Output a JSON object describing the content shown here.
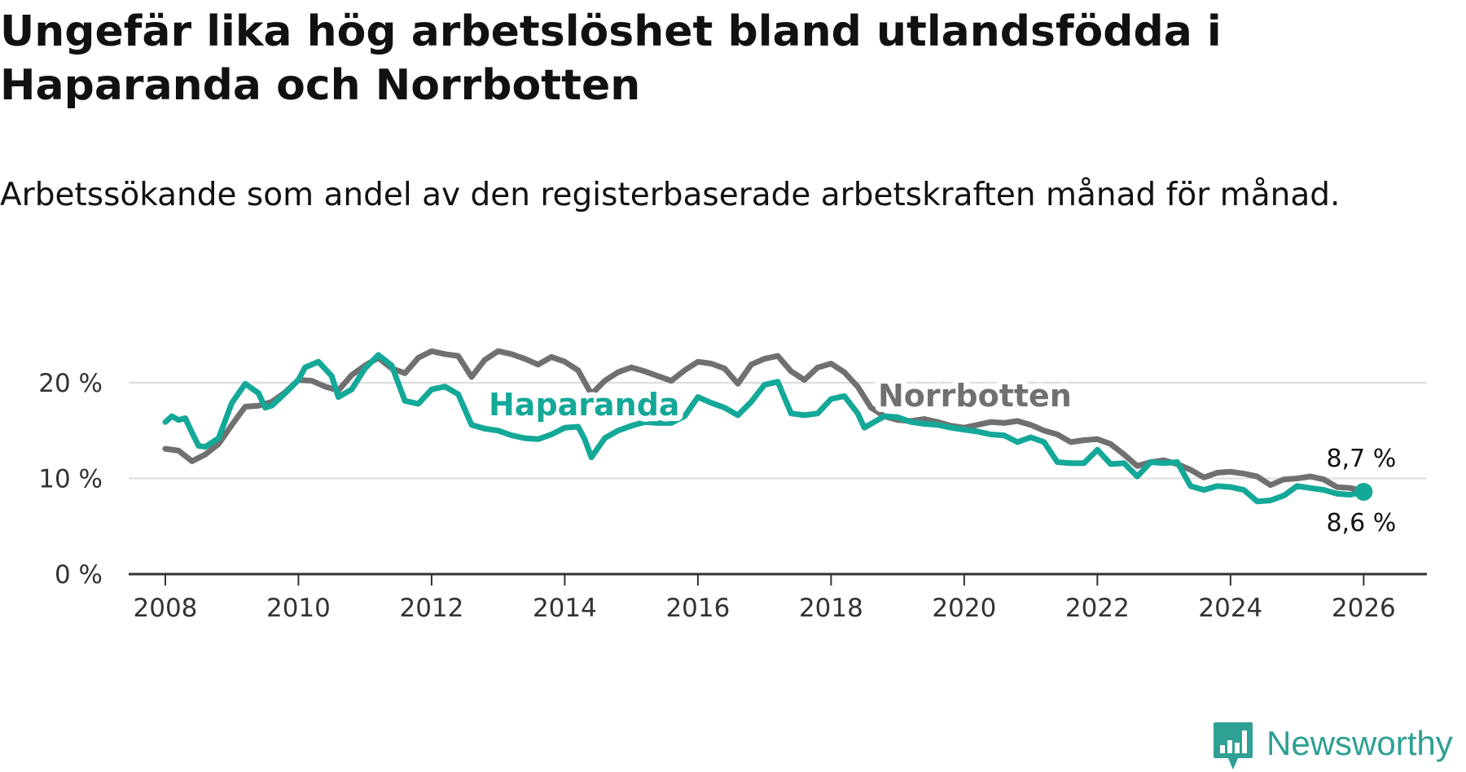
{
  "title": "Ungefär lika hög arbetslöshet bland utlandsfödda i Haparanda och Norrbotten",
  "subtitle": "Arbetssökande som andel av den registerbaserade arbetskraften månad för månad.",
  "brand": {
    "name": "Newsworthy",
    "color": "#2ea094"
  },
  "colors": {
    "haparanda": "#14a898",
    "norrbotten": "#707070",
    "grid": "#dcdcdc",
    "axis": "#333333"
  },
  "chart_data": {
    "type": "line",
    "title": "Ungefär lika hög arbetslöshet bland utlandsfödda i Haparanda och Norrbotten",
    "xlabel": "",
    "ylabel": "",
    "xlim": [
      2007.45,
      2026.95
    ],
    "ylim": [
      0,
      20
    ],
    "grid": true,
    "x_ticks": [
      2008,
      2010,
      2012,
      2014,
      2016,
      2018,
      2020,
      2022,
      2024,
      2026
    ],
    "x_tick_labels": [
      "2008",
      "2010",
      "2012",
      "2014",
      "2016",
      "2018",
      "2020",
      "2022",
      "2024",
      "2026"
    ],
    "y_ticks": [
      0,
      10,
      20
    ],
    "y_tick_labels": [
      "0 %",
      "10 %",
      "20 %"
    ],
    "series": [
      {
        "name": "Norrbotten",
        "label": "Norrbotten",
        "color": "#707070",
        "end_label": "8,7 %",
        "points": [
          [
            2008.0,
            13.1
          ],
          [
            2008.2,
            12.9
          ],
          [
            2008.4,
            11.8
          ],
          [
            2008.6,
            12.5
          ],
          [
            2008.8,
            13.6
          ],
          [
            2009.0,
            15.6
          ],
          [
            2009.2,
            17.5
          ],
          [
            2009.4,
            17.6
          ],
          [
            2009.6,
            18.0
          ],
          [
            2009.8,
            19.0
          ],
          [
            2010.0,
            20.3
          ],
          [
            2010.2,
            20.2
          ],
          [
            2010.4,
            19.6
          ],
          [
            2010.6,
            19.2
          ],
          [
            2010.8,
            20.8
          ],
          [
            2011.0,
            21.8
          ],
          [
            2011.2,
            22.6
          ],
          [
            2011.4,
            21.5
          ],
          [
            2011.6,
            21.0
          ],
          [
            2011.8,
            22.6
          ],
          [
            2012.0,
            23.3
          ],
          [
            2012.2,
            23.0
          ],
          [
            2012.4,
            22.8
          ],
          [
            2012.6,
            20.6
          ],
          [
            2012.8,
            22.4
          ],
          [
            2013.0,
            23.3
          ],
          [
            2013.2,
            23.0
          ],
          [
            2013.4,
            22.5
          ],
          [
            2013.6,
            21.9
          ],
          [
            2013.8,
            22.7
          ],
          [
            2014.0,
            22.2
          ],
          [
            2014.2,
            21.3
          ],
          [
            2014.4,
            18.8
          ],
          [
            2014.6,
            20.2
          ],
          [
            2014.8,
            21.1
          ],
          [
            2015.0,
            21.6
          ],
          [
            2015.2,
            21.2
          ],
          [
            2015.4,
            20.7
          ],
          [
            2015.6,
            20.2
          ],
          [
            2015.8,
            21.3
          ],
          [
            2016.0,
            22.2
          ],
          [
            2016.2,
            22.0
          ],
          [
            2016.4,
            21.5
          ],
          [
            2016.6,
            19.9
          ],
          [
            2016.8,
            21.9
          ],
          [
            2017.0,
            22.5
          ],
          [
            2017.2,
            22.8
          ],
          [
            2017.4,
            21.2
          ],
          [
            2017.6,
            20.3
          ],
          [
            2017.8,
            21.6
          ],
          [
            2018.0,
            22.0
          ],
          [
            2018.2,
            21.1
          ],
          [
            2018.4,
            19.6
          ],
          [
            2018.6,
            17.4
          ],
          [
            2018.8,
            16.5
          ],
          [
            2019.0,
            16.1
          ],
          [
            2019.2,
            16.0
          ],
          [
            2019.4,
            16.2
          ],
          [
            2019.6,
            15.9
          ],
          [
            2019.8,
            15.5
          ],
          [
            2020.0,
            15.3
          ],
          [
            2020.2,
            15.6
          ],
          [
            2020.4,
            15.9
          ],
          [
            2020.6,
            15.8
          ],
          [
            2020.8,
            16.0
          ],
          [
            2021.0,
            15.6
          ],
          [
            2021.2,
            15.0
          ],
          [
            2021.4,
            14.6
          ],
          [
            2021.6,
            13.8
          ],
          [
            2021.8,
            14.0
          ],
          [
            2022.0,
            14.1
          ],
          [
            2022.2,
            13.6
          ],
          [
            2022.4,
            12.5
          ],
          [
            2022.6,
            11.3
          ],
          [
            2022.8,
            11.7
          ],
          [
            2023.0,
            11.9
          ],
          [
            2023.2,
            11.5
          ],
          [
            2023.4,
            10.9
          ],
          [
            2023.6,
            10.1
          ],
          [
            2023.8,
            10.6
          ],
          [
            2024.0,
            10.7
          ],
          [
            2024.2,
            10.5
          ],
          [
            2024.4,
            10.2
          ],
          [
            2024.6,
            9.3
          ],
          [
            2024.8,
            9.9
          ],
          [
            2025.0,
            10.0
          ],
          [
            2025.2,
            10.2
          ],
          [
            2025.4,
            9.9
          ],
          [
            2025.6,
            9.1
          ],
          [
            2025.8,
            9.0
          ],
          [
            2026.0,
            8.7
          ]
        ]
      },
      {
        "name": "Haparanda",
        "label": "Haparanda",
        "color": "#14a898",
        "end_label": "8,6 %",
        "points": [
          [
            2008.0,
            15.9
          ],
          [
            2008.1,
            16.5
          ],
          [
            2008.2,
            16.1
          ],
          [
            2008.3,
            16.3
          ],
          [
            2008.4,
            14.8
          ],
          [
            2008.5,
            13.4
          ],
          [
            2008.6,
            13.3
          ],
          [
            2008.8,
            14.2
          ],
          [
            2009.0,
            17.9
          ],
          [
            2009.2,
            19.9
          ],
          [
            2009.4,
            18.9
          ],
          [
            2009.5,
            17.4
          ],
          [
            2009.6,
            17.6
          ],
          [
            2009.8,
            18.9
          ],
          [
            2010.0,
            20.3
          ],
          [
            2010.1,
            21.6
          ],
          [
            2010.3,
            22.2
          ],
          [
            2010.5,
            20.7
          ],
          [
            2010.6,
            18.5
          ],
          [
            2010.8,
            19.3
          ],
          [
            2011.0,
            21.5
          ],
          [
            2011.2,
            22.9
          ],
          [
            2011.4,
            21.8
          ],
          [
            2011.6,
            18.1
          ],
          [
            2011.8,
            17.8
          ],
          [
            2012.0,
            19.3
          ],
          [
            2012.2,
            19.6
          ],
          [
            2012.4,
            18.8
          ],
          [
            2012.6,
            15.6
          ],
          [
            2012.8,
            15.2
          ],
          [
            2013.0,
            15.0
          ],
          [
            2013.2,
            14.5
          ],
          [
            2013.4,
            14.2
          ],
          [
            2013.6,
            14.1
          ],
          [
            2013.8,
            14.6
          ],
          [
            2014.0,
            15.3
          ],
          [
            2014.2,
            15.4
          ],
          [
            2014.3,
            14.1
          ],
          [
            2014.4,
            12.2
          ],
          [
            2014.6,
            14.2
          ],
          [
            2014.8,
            15.0
          ],
          [
            2015.0,
            15.5
          ],
          [
            2015.2,
            15.9
          ],
          [
            2015.4,
            15.8
          ],
          [
            2015.6,
            15.8
          ],
          [
            2015.8,
            16.5
          ],
          [
            2016.0,
            18.5
          ],
          [
            2016.2,
            17.9
          ],
          [
            2016.4,
            17.4
          ],
          [
            2016.6,
            16.6
          ],
          [
            2016.8,
            18.0
          ],
          [
            2017.0,
            19.8
          ],
          [
            2017.2,
            20.1
          ],
          [
            2017.4,
            16.8
          ],
          [
            2017.6,
            16.6
          ],
          [
            2017.8,
            16.8
          ],
          [
            2018.0,
            18.3
          ],
          [
            2018.2,
            18.6
          ],
          [
            2018.4,
            16.8
          ],
          [
            2018.5,
            15.3
          ],
          [
            2018.8,
            16.5
          ],
          [
            2019.0,
            16.4
          ],
          [
            2019.2,
            15.9
          ],
          [
            2019.4,
            15.7
          ],
          [
            2019.6,
            15.6
          ],
          [
            2019.8,
            15.3
          ],
          [
            2020.0,
            15.1
          ],
          [
            2020.2,
            14.9
          ],
          [
            2020.4,
            14.6
          ],
          [
            2020.6,
            14.5
          ],
          [
            2020.8,
            13.8
          ],
          [
            2021.0,
            14.3
          ],
          [
            2021.2,
            13.8
          ],
          [
            2021.4,
            11.7
          ],
          [
            2021.6,
            11.6
          ],
          [
            2021.8,
            11.6
          ],
          [
            2022.0,
            13.0
          ],
          [
            2022.2,
            11.5
          ],
          [
            2022.4,
            11.6
          ],
          [
            2022.6,
            10.2
          ],
          [
            2022.8,
            11.7
          ],
          [
            2023.0,
            11.6
          ],
          [
            2023.2,
            11.7
          ],
          [
            2023.4,
            9.2
          ],
          [
            2023.6,
            8.8
          ],
          [
            2023.8,
            9.2
          ],
          [
            2024.0,
            9.1
          ],
          [
            2024.2,
            8.8
          ],
          [
            2024.4,
            7.6
          ],
          [
            2024.6,
            7.7
          ],
          [
            2024.8,
            8.2
          ],
          [
            2025.0,
            9.2
          ],
          [
            2025.2,
            9.0
          ],
          [
            2025.4,
            8.8
          ],
          [
            2025.6,
            8.4
          ],
          [
            2025.8,
            8.3
          ],
          [
            2026.0,
            8.6
          ]
        ]
      }
    ]
  }
}
